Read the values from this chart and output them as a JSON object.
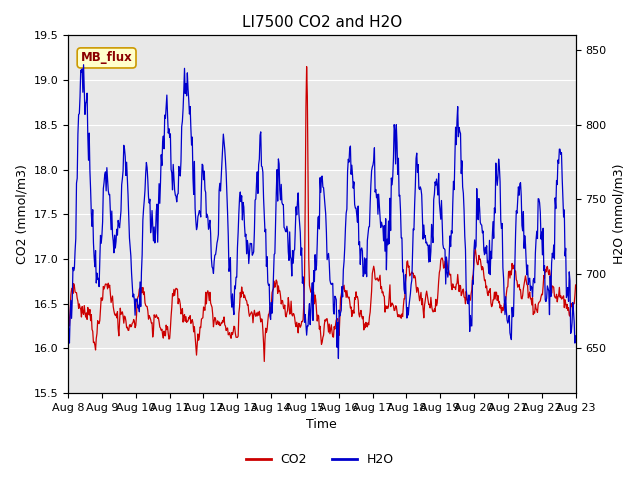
{
  "title": "LI7500 CO2 and H2O",
  "xlabel": "Time",
  "ylabel_left": "CO2 (mmol/m3)",
  "ylabel_right": "H2O (mmol/m3)",
  "ylim_left": [
    15.5,
    19.5
  ],
  "ylim_right": [
    620,
    860
  ],
  "xlim": [
    0,
    15
  ],
  "xtick_labels": [
    "Aug 8",
    "Aug 9",
    "Aug 10",
    "Aug 11",
    "Aug 12",
    "Aug 13",
    "Aug 14",
    "Aug 15",
    "Aug 16",
    "Aug 17",
    "Aug 18",
    "Aug 19",
    "Aug 20",
    "Aug 21",
    "Aug 22",
    "Aug 23"
  ],
  "co2_color": "#cc0000",
  "h2o_color": "#0000cc",
  "bg_color": "#e8e8e8",
  "fig_bg_color": "#ffffff",
  "annotation_text": "MB_flux",
  "annotation_bg": "#ffffcc",
  "annotation_border": "#cc9900",
  "legend_co2": "CO2",
  "legend_h2o": "H2O",
  "title_fontsize": 11,
  "axis_fontsize": 9,
  "tick_fontsize": 8
}
